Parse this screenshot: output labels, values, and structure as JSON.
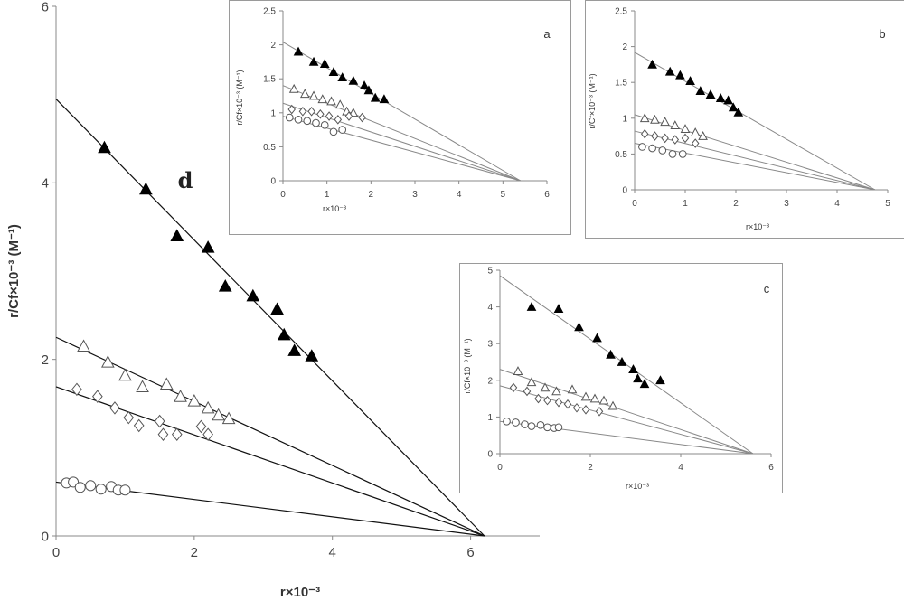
{
  "chart_data": [
    {
      "id": "d",
      "type": "scatter",
      "panel_label": "d",
      "xlabel": "r×10⁻³",
      "ylabel": "r/Cf×10⁻³ (M⁻¹)",
      "xlim": [
        0,
        7
      ],
      "ylim": [
        0,
        6
      ],
      "xticks": [
        0,
        2,
        4,
        6
      ],
      "yticks": [
        0,
        2,
        4,
        6
      ],
      "x_intercept": 6.2,
      "series": [
        {
          "marker": "filled-triangle",
          "y_intercept": 4.95,
          "x": [
            0.7,
            1.3,
            1.75,
            2.2,
            2.45,
            2.85,
            3.2,
            3.3,
            3.45,
            3.7
          ],
          "y": [
            4.4,
            3.93,
            3.4,
            3.27,
            2.83,
            2.72,
            2.57,
            2.28,
            2.1,
            2.04
          ]
        },
        {
          "marker": "open-triangle",
          "y_intercept": 2.25,
          "x": [
            0.4,
            0.75,
            1.0,
            1.25,
            1.6,
            1.8,
            2.0,
            2.2,
            2.35,
            2.5
          ],
          "y": [
            2.15,
            1.97,
            1.82,
            1.69,
            1.72,
            1.58,
            1.53,
            1.45,
            1.37,
            1.33
          ]
        },
        {
          "marker": "open-diamond",
          "y_intercept": 1.69,
          "x": [
            0.3,
            0.6,
            0.85,
            1.05,
            1.2,
            1.5,
            1.55,
            1.75,
            2.1,
            2.2
          ],
          "y": [
            1.66,
            1.58,
            1.45,
            1.34,
            1.25,
            1.3,
            1.15,
            1.15,
            1.24,
            1.15
          ]
        },
        {
          "marker": "open-circle",
          "y_intercept": 0.61,
          "x": [
            0.15,
            0.25,
            0.35,
            0.5,
            0.65,
            0.8,
            0.9,
            1.0
          ],
          "y": [
            0.6,
            0.61,
            0.55,
            0.57,
            0.53,
            0.56,
            0.52,
            0.52
          ]
        }
      ]
    },
    {
      "id": "a",
      "type": "scatter",
      "panel_label": "a",
      "xlabel": "r×10⁻³",
      "ylabel": "r/Cf×10⁻³ (M⁻¹)",
      "xlim": [
        0,
        6
      ],
      "ylim": [
        0,
        2.5
      ],
      "xticks": [
        0,
        1,
        2,
        3,
        4,
        5,
        6
      ],
      "yticks": [
        0,
        0.5,
        1,
        1.5,
        2,
        2.5
      ],
      "x_intercept": 5.4,
      "series": [
        {
          "marker": "filled-triangle",
          "y_intercept": 2.04,
          "x": [
            0.35,
            0.7,
            0.95,
            1.15,
            1.35,
            1.6,
            1.85,
            1.95,
            2.1,
            2.3
          ],
          "y": [
            1.9,
            1.75,
            1.72,
            1.6,
            1.52,
            1.47,
            1.4,
            1.33,
            1.22,
            1.2
          ]
        },
        {
          "marker": "open-triangle",
          "y_intercept": 1.4,
          "x": [
            0.25,
            0.5,
            0.7,
            0.9,
            1.1,
            1.3,
            1.45,
            1.6
          ],
          "y": [
            1.35,
            1.28,
            1.25,
            1.2,
            1.17,
            1.12,
            1.02,
            1.0
          ]
        },
        {
          "marker": "open-diamond",
          "y_intercept": 1.14,
          "x": [
            0.2,
            0.45,
            0.65,
            0.85,
            1.05,
            1.25,
            1.5,
            1.8
          ],
          "y": [
            1.05,
            1.02,
            1.02,
            0.98,
            0.95,
            0.9,
            0.95,
            0.93
          ]
        },
        {
          "marker": "open-circle",
          "y_intercept": 0.95,
          "x": [
            0.15,
            0.35,
            0.55,
            0.75,
            0.95,
            1.15,
            1.35
          ],
          "y": [
            0.93,
            0.9,
            0.88,
            0.85,
            0.82,
            0.72,
            0.75
          ]
        }
      ]
    },
    {
      "id": "b",
      "type": "scatter",
      "panel_label": "b",
      "xlabel": "r×10⁻³",
      "ylabel": "r/Cf×10⁻³ (M⁻¹)",
      "xlim": [
        0,
        5
      ],
      "ylim": [
        0,
        2.5
      ],
      "xticks": [
        0,
        1,
        2,
        3,
        4,
        5
      ],
      "yticks": [
        0,
        0.5,
        1,
        1.5,
        2,
        2.5
      ],
      "x_intercept": 4.75,
      "series": [
        {
          "marker": "filled-triangle",
          "y_intercept": 1.92,
          "x": [
            0.35,
            0.7,
            0.9,
            1.1,
            1.3,
            1.5,
            1.7,
            1.85,
            1.95,
            2.05
          ],
          "y": [
            1.75,
            1.65,
            1.6,
            1.52,
            1.38,
            1.33,
            1.28,
            1.25,
            1.15,
            1.08
          ]
        },
        {
          "marker": "open-triangle",
          "y_intercept": 1.05,
          "x": [
            0.2,
            0.4,
            0.6,
            0.8,
            1.0,
            1.2,
            1.35
          ],
          "y": [
            1.0,
            0.98,
            0.95,
            0.9,
            0.85,
            0.8,
            0.75
          ]
        },
        {
          "marker": "open-diamond",
          "y_intercept": 0.82,
          "x": [
            0.2,
            0.4,
            0.6,
            0.8,
            1.0,
            1.2
          ],
          "y": [
            0.78,
            0.75,
            0.72,
            0.7,
            0.72,
            0.65
          ]
        },
        {
          "marker": "open-circle",
          "y_intercept": 0.65,
          "x": [
            0.15,
            0.35,
            0.55,
            0.75,
            0.95
          ],
          "y": [
            0.6,
            0.58,
            0.55,
            0.5,
            0.5
          ]
        }
      ]
    },
    {
      "id": "c",
      "type": "scatter",
      "panel_label": "c",
      "xlabel": "r×10⁻³",
      "ylabel": "r/Cf×10⁻³ (M⁻¹)",
      "xlim": [
        0,
        6
      ],
      "ylim": [
        0,
        5
      ],
      "xticks": [
        0,
        2,
        4,
        6
      ],
      "yticks": [
        0,
        1,
        2,
        3,
        4,
        5
      ],
      "x_intercept": 5.6,
      "series": [
        {
          "marker": "filled-triangle",
          "y_intercept": 4.85,
          "x": [
            0.7,
            1.3,
            1.75,
            2.15,
            2.45,
            2.7,
            2.95,
            3.05,
            3.2,
            3.55
          ],
          "y": [
            4.0,
            3.95,
            3.45,
            3.15,
            2.7,
            2.5,
            2.3,
            2.05,
            1.9,
            2.0
          ]
        },
        {
          "marker": "open-triangle",
          "y_intercept": 2.3,
          "x": [
            0.4,
            0.7,
            1.0,
            1.25,
            1.6,
            1.9,
            2.1,
            2.3,
            2.5
          ],
          "y": [
            2.25,
            1.95,
            1.8,
            1.7,
            1.75,
            1.55,
            1.5,
            1.45,
            1.3
          ]
        },
        {
          "marker": "open-diamond",
          "y_intercept": 1.85,
          "x": [
            0.3,
            0.6,
            0.85,
            1.05,
            1.3,
            1.5,
            1.7,
            1.9,
            2.2
          ],
          "y": [
            1.8,
            1.7,
            1.5,
            1.45,
            1.4,
            1.35,
            1.25,
            1.2,
            1.15
          ]
        },
        {
          "marker": "open-circle",
          "y_intercept": 0.88,
          "x": [
            0.15,
            0.35,
            0.55,
            0.7,
            0.9,
            1.05,
            1.2,
            1.3
          ],
          "y": [
            0.88,
            0.85,
            0.8,
            0.75,
            0.78,
            0.72,
            0.7,
            0.72
          ]
        }
      ]
    }
  ]
}
